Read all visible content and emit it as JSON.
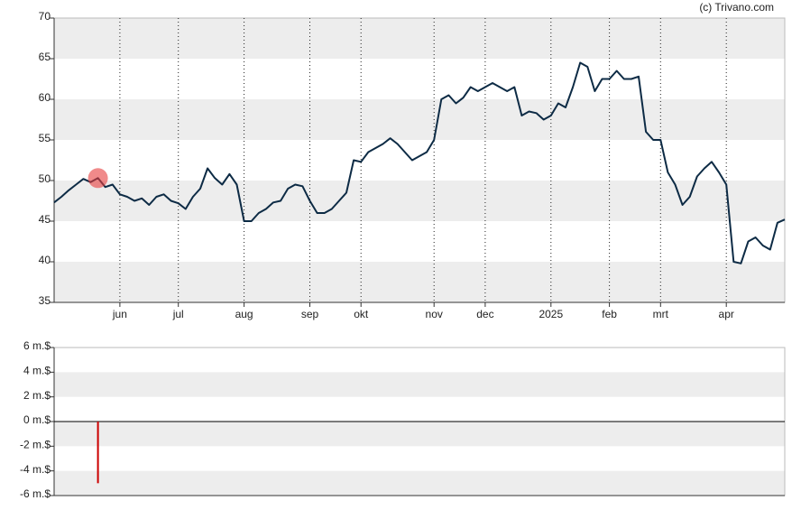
{
  "credit": "(c) Trivano.com",
  "chart_data": [
    {
      "type": "line",
      "categories": [
        null,
        null,
        null,
        null,
        null,
        null,
        null,
        null,
        null,
        "jun",
        null,
        null,
        null,
        null,
        null,
        null,
        null,
        "jul",
        null,
        null,
        null,
        null,
        null,
        null,
        null,
        null,
        "aug",
        null,
        null,
        null,
        null,
        null,
        null,
        null,
        null,
        "sep",
        null,
        null,
        null,
        null,
        null,
        null,
        "okt",
        null,
        null,
        null,
        null,
        null,
        null,
        null,
        null,
        null,
        "nov",
        null,
        null,
        null,
        null,
        null,
        null,
        "dec",
        null,
        null,
        null,
        null,
        null,
        null,
        null,
        null,
        "2025",
        null,
        null,
        null,
        null,
        null,
        null,
        null,
        "feb",
        null,
        null,
        null,
        null,
        null,
        null,
        "mrt",
        null,
        null,
        null,
        null,
        null,
        null,
        null,
        null,
        "apr",
        null,
        null,
        null,
        null,
        null,
        null,
        null,
        null
      ],
      "series": [
        {
          "color": "#0d2b45",
          "values": [
            47.3,
            48,
            48.8,
            49.5,
            50.2,
            49.8,
            50.3,
            49.2,
            49.5,
            48.3,
            48,
            47.5,
            47.8,
            47,
            48,
            48.3,
            47.5,
            47.2,
            46.5,
            48,
            49,
            51.5,
            50.3,
            49.5,
            50.8,
            49.5,
            45,
            45,
            46,
            46.5,
            47.3,
            47.5,
            49,
            49.5,
            49.3,
            47.5,
            46,
            46,
            46.5,
            47.5,
            48.5,
            52.5,
            52.3,
            53.5,
            54,
            54.5,
            55.2,
            54.5,
            53.5,
            52.5,
            53,
            53.5,
            55,
            60,
            60.5,
            59.5,
            60.2,
            61.5,
            61,
            61.5,
            62,
            61.5,
            61,
            61.5,
            58,
            58.5,
            58.3,
            57.5,
            58,
            59.5,
            59,
            61.5,
            64.5,
            64,
            61,
            62.5,
            62.5,
            63.5,
            62.5,
            62.5,
            62.8,
            56,
            55,
            55,
            51,
            49.5,
            47,
            48,
            50.5,
            51.5,
            52.3,
            51,
            49.5,
            40,
            39.8,
            42.5,
            43,
            42,
            41.5,
            44.8,
            45.2
          ]
        }
      ],
      "ylim": [
        35,
        70
      ],
      "yticks": [
        35,
        40,
        45,
        50,
        55,
        60,
        65,
        70
      ],
      "grid": true,
      "bands": true
    },
    {
      "type": "bar",
      "color": "#cc0000",
      "values": [
        null,
        null,
        null,
        null,
        null,
        null,
        -5,
        null,
        null,
        null,
        null,
        null,
        null,
        null,
        null,
        null,
        null,
        null,
        null,
        null,
        null,
        null,
        null,
        null,
        null,
        null,
        null,
        null,
        null,
        null,
        null,
        null,
        null,
        null,
        null,
        null,
        null,
        null,
        null,
        null,
        null,
        null,
        null,
        null,
        null,
        null,
        null,
        null,
        null,
        null,
        null,
        null,
        null,
        null,
        null,
        null,
        null,
        null,
        null,
        null,
        null,
        null,
        null,
        null,
        null,
        null,
        null,
        null,
        null,
        null,
        null,
        null,
        null,
        null,
        null,
        null,
        null,
        null,
        null,
        null,
        null,
        null,
        null,
        null,
        null,
        null,
        null,
        null,
        null,
        null,
        null,
        null,
        null,
        null,
        null,
        null,
        null,
        null,
        null,
        null,
        null
      ],
      "ylim": [
        -6,
        6
      ],
      "yticks": [
        {
          "value": 6,
          "label": "6 m.$"
        },
        {
          "value": 4,
          "label": "4 m.$"
        },
        {
          "value": 2,
          "label": "2 m.$"
        },
        {
          "value": 0,
          "label": "0 m.$"
        },
        {
          "value": -2,
          "label": "-2 m.$"
        },
        {
          "value": -4,
          "label": "-4 m.$"
        },
        {
          "value": -6,
          "label": "-6 m.$"
        }
      ],
      "bands": true
    }
  ]
}
